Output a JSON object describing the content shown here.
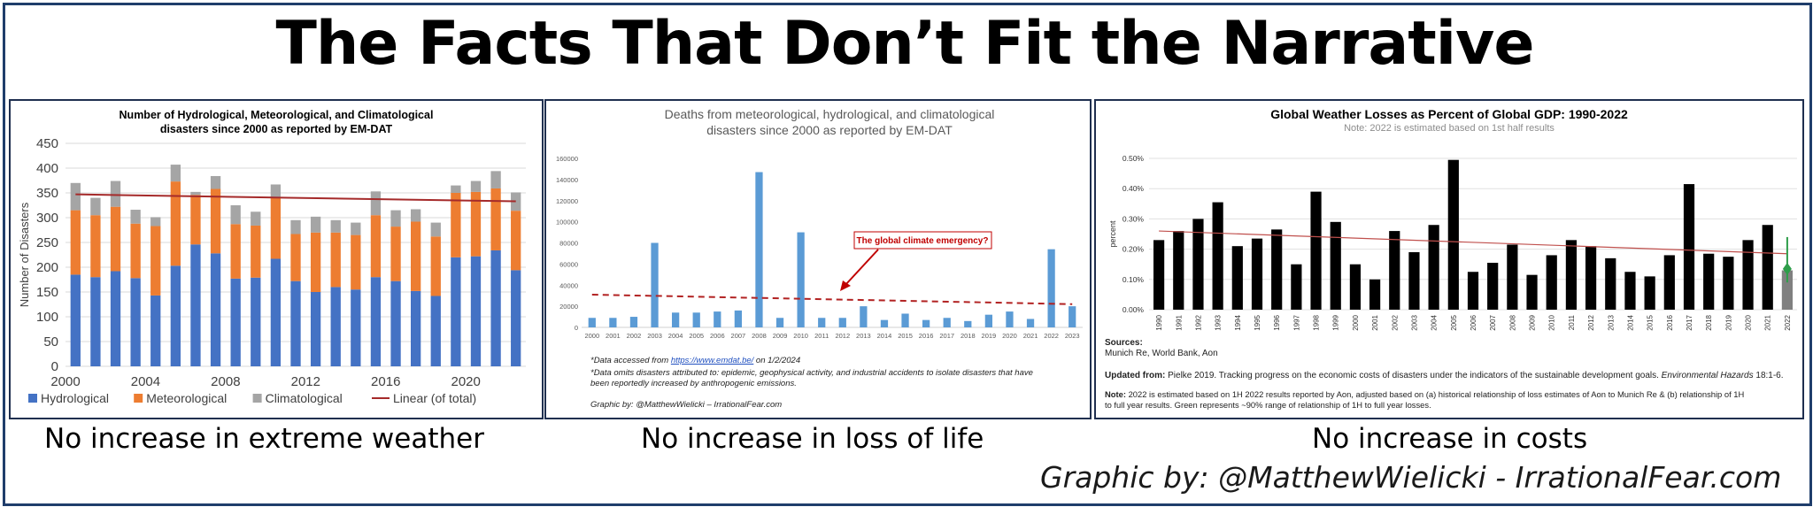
{
  "title": "The Facts That Don’t Fit the Narrative",
  "credit": "Graphic by: @MatthewWielicki - IrrationalFear.com",
  "captions": [
    "No increase in extreme weather",
    "No increase in loss of life",
    "No increase in costs"
  ],
  "chart_data": [
    {
      "type": "bar",
      "stacked": true,
      "title": "Number of Hydrological, Meteorological, and Climatological disasters since 2000 as reported by EM-DAT",
      "title_lines": [
        "Number of Hydrological, Meteorological, and Climatological",
        "disasters since 2000 as reported by EM-DAT"
      ],
      "ylabel": "Number of Disasters",
      "ylim": [
        0,
        450
      ],
      "yticks": [
        "0",
        "50",
        "100",
        "150",
        "200",
        "250",
        "300",
        "350",
        "400",
        "450"
      ],
      "xtick_labels": [
        "2000",
        "2004",
        "2008",
        "2012",
        "2016",
        "2020"
      ],
      "categories": [
        2000,
        2001,
        2002,
        2003,
        2004,
        2005,
        2006,
        2007,
        2008,
        2009,
        2010,
        2011,
        2012,
        2013,
        2014,
        2015,
        2016,
        2017,
        2018,
        2019,
        2020,
        2021,
        2022
      ],
      "series": [
        {
          "name": "Hydrological",
          "color": "#4472c4",
          "values": [
            185,
            180,
            192,
            178,
            143,
            203,
            246,
            228,
            177,
            179,
            217,
            172,
            150,
            160,
            155,
            180,
            172,
            152,
            142,
            220,
            222,
            234,
            194
          ]
        },
        {
          "name": "Meteorological",
          "color": "#ed7d31",
          "values": [
            130,
            125,
            130,
            110,
            140,
            170,
            100,
            130,
            110,
            105,
            125,
            95,
            120,
            110,
            110,
            125,
            110,
            140,
            120,
            130,
            130,
            125,
            120
          ]
        },
        {
          "name": "Climatological",
          "color": "#a5a5a5",
          "values": [
            55,
            35,
            52,
            28,
            18,
            34,
            6,
            26,
            38,
            28,
            25,
            28,
            32,
            25,
            25,
            48,
            33,
            25,
            28,
            15,
            22,
            35,
            37
          ]
        }
      ],
      "trend": {
        "name": "Linear (of total)",
        "color": "#a52a2a",
        "start": 347,
        "end": 333
      },
      "legend": "bottom"
    },
    {
      "type": "bar",
      "title_lines": [
        "Deaths from meteorological, hydrological, and climatological",
        "disasters since 2000 as reported by EM-DAT"
      ],
      "ylim": [
        0,
        160000
      ],
      "yticks": [
        "0",
        "20000",
        "40000",
        "60000",
        "80000",
        "100000",
        "120000",
        "140000",
        "160000"
      ],
      "categories": [
        "2000",
        "2001",
        "2002",
        "2003",
        "2004",
        "2005",
        "2006",
        "2007",
        "2008",
        "2009",
        "2010",
        "2011",
        "2012",
        "2013",
        "2014",
        "2015",
        "2016",
        "2017",
        "2018",
        "2019",
        "2020",
        "2021",
        "2022",
        "2023"
      ],
      "values": [
        9000,
        9000,
        10000,
        80000,
        14000,
        14000,
        15000,
        16000,
        147000,
        9000,
        90000,
        9000,
        9000,
        20000,
        7000,
        13000,
        7000,
        9000,
        6000,
        12000,
        15000,
        8000,
        74000,
        20000
      ],
      "bar_color": "#5b9bd5",
      "trend": {
        "color": "#b22222",
        "start": 31000,
        "end": 22000
      },
      "annotation": "The global climate emergency?",
      "notes": {
        "line1_prefix": "*Data accessed from ",
        "line1_link": "https://www.emdat.be/",
        "line1_suffix": " on 1/2/2024",
        "line2": "*Data omits disasters attributed to: epidemic, geophysical activity, and industrial accidents to isolate disasters that have",
        "line3": "been reportedly increased by anthropogenic emissions.",
        "credit": "Graphic by: @MatthewWielicki – IrrationalFear.com"
      }
    },
    {
      "type": "bar",
      "title": "Global Weather Losses as Percent of Global GDP: 1990-2022",
      "subtitle": "Note: 2022 is estimated based on 1st half results",
      "ylabel": "percent",
      "ylim": [
        0,
        0.5
      ],
      "yticks": [
        "0.00%",
        "0.10%",
        "0.20%",
        "0.30%",
        "0.40%",
        "0.50%"
      ],
      "categories": [
        "1990",
        "1991",
        "1992",
        "1993",
        "1994",
        "1995",
        "1996",
        "1997",
        "1998",
        "1999",
        "2000",
        "2001",
        "2002",
        "2003",
        "2004",
        "2005",
        "2006",
        "2007",
        "2008",
        "2009",
        "2010",
        "2011",
        "2012",
        "2013",
        "2014",
        "2015",
        "2016",
        "2017",
        "2018",
        "2019",
        "2020",
        "2021",
        "2022"
      ],
      "values": [
        0.23,
        0.26,
        0.3,
        0.355,
        0.21,
        0.235,
        0.265,
        0.15,
        0.39,
        0.29,
        0.15,
        0.1,
        0.26,
        0.19,
        0.28,
        0.495,
        0.125,
        0.155,
        0.215,
        0.115,
        0.18,
        0.23,
        0.21,
        0.17,
        0.125,
        0.11,
        0.18,
        0.415,
        0.185,
        0.175,
        0.23,
        0.28,
        0.13
      ],
      "bar_color": "#000000",
      "last_bar_color": "#808080",
      "estimate_range": {
        "low": 0.09,
        "high": 0.24,
        "mid": 0.135,
        "color": "#2e9e4a"
      },
      "trend": {
        "color": "#c0504d",
        "start": 0.26,
        "end": 0.185
      },
      "sources_label": "Sources:",
      "sources": "Munich Re,  World Bank,  Aon",
      "updated_label": "Updated from:",
      "updated_text": "Pielke 2019. Tracking progress on the economic costs of disasters under the indicators of the sustainable development goals. ",
      "updated_journal": "Environmental Hazards",
      "updated_tail": " 18:1-6.",
      "note_label": "Note:",
      "note_line1": "2022 is estimated based on 1H 2022 results reported by Aon, adjusted based on (a) historical relationship of loss estimates of Aon to Munich Re & (b) relationship of 1H",
      "note_line2": "to full year results. Green represents ~90% range of relationship of 1H to full year losses."
    }
  ]
}
